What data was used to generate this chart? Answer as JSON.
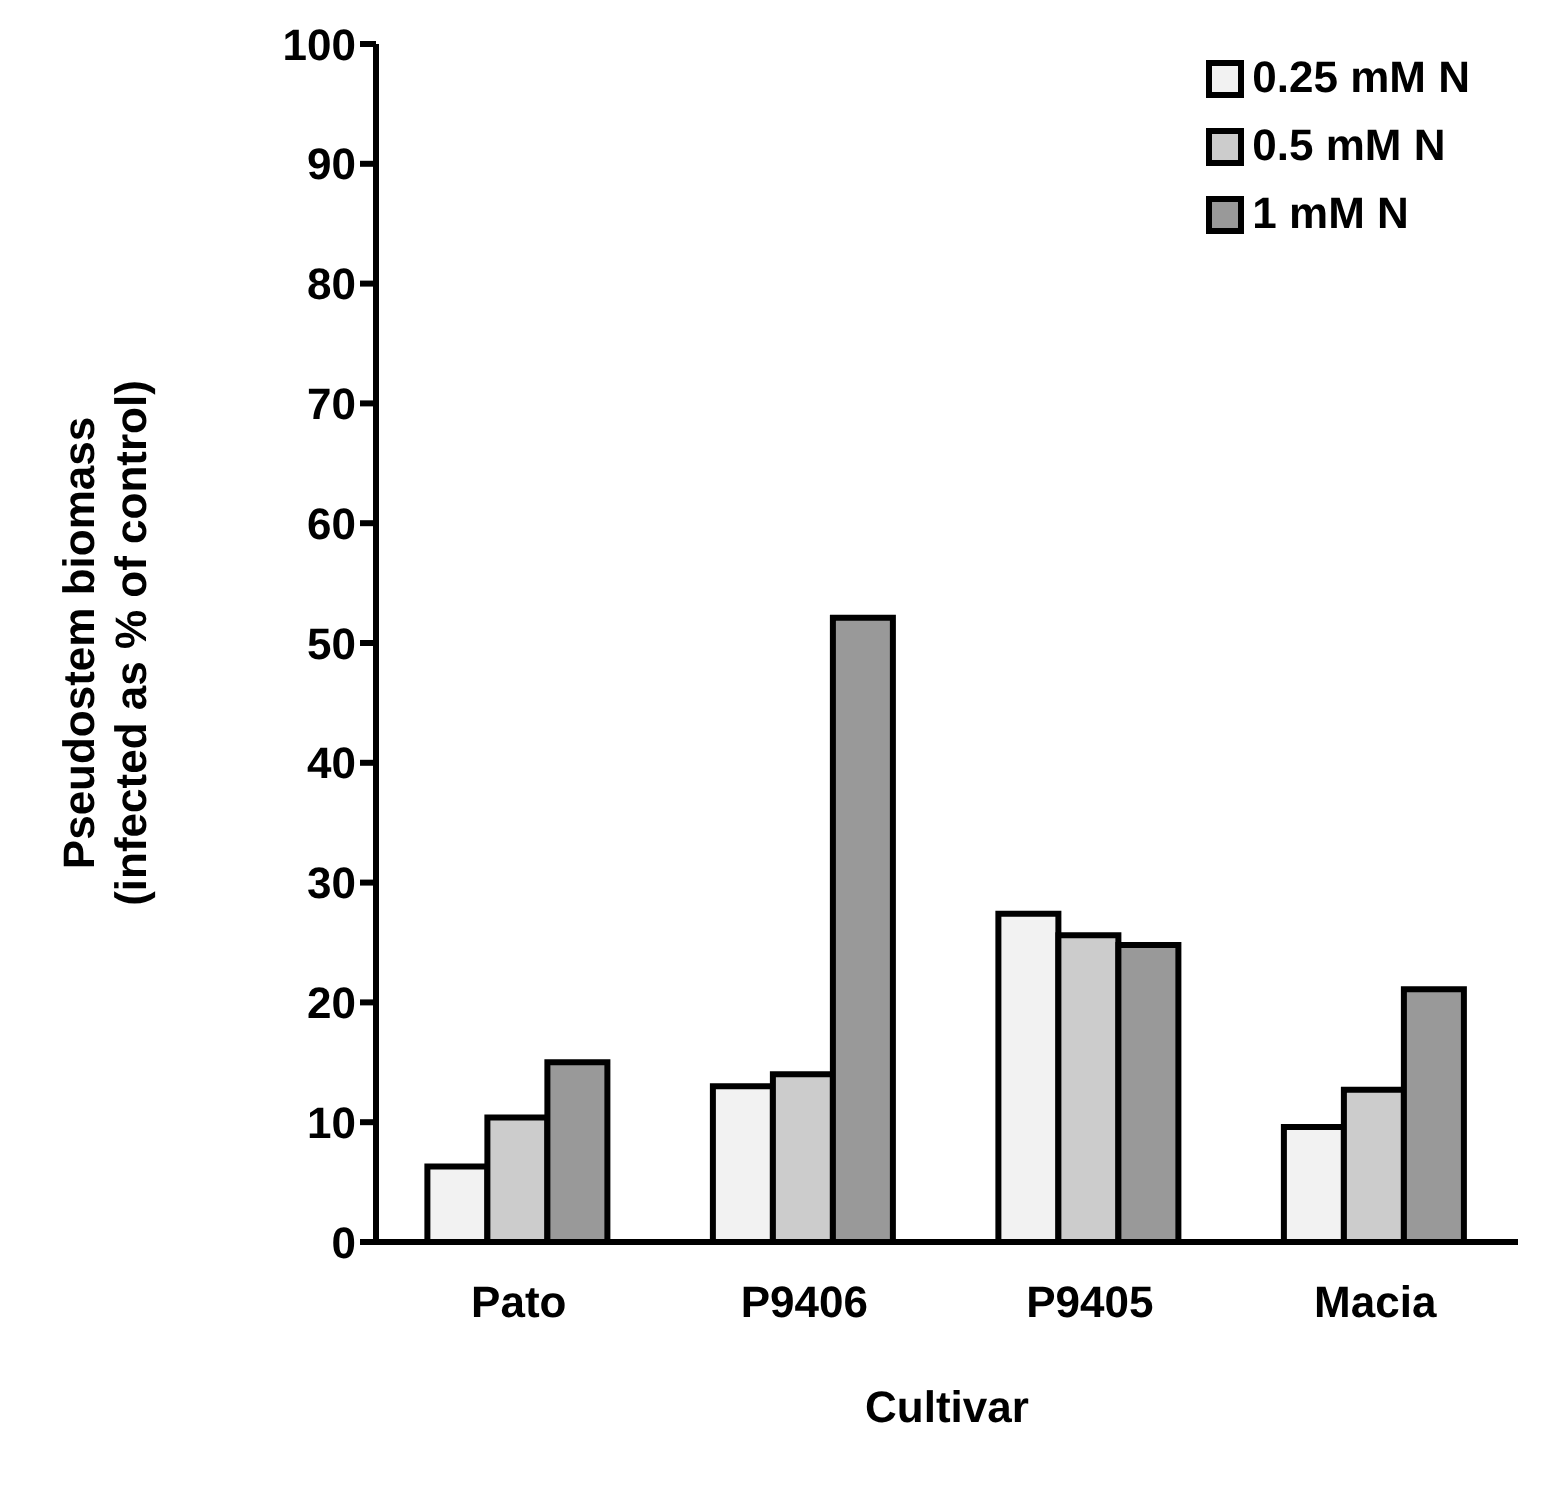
{
  "chart_data": {
    "type": "bar",
    "xlabel": "Cultivar",
    "ylabel": "Pseudostem biomass\n(infected as % of control)",
    "categories": [
      "Pato",
      "P9406",
      "P9405",
      "Macia"
    ],
    "series": [
      {
        "name": "0.25 mM N",
        "color": "#f2f2f2",
        "values": [
          6.3,
          13,
          27.4,
          9.6
        ]
      },
      {
        "name": "0.5 mM N",
        "color": "#cccccc",
        "values": [
          10.4,
          14,
          25.6,
          12.7
        ]
      },
      {
        "name": "1 mM N",
        "color": "#999999",
        "values": [
          15,
          52.1,
          24.8,
          21.1
        ]
      }
    ],
    "ylim": [
      0,
      100
    ],
    "yticks": [
      0,
      10,
      20,
      30,
      40,
      50,
      60,
      70,
      80,
      90,
      100
    ],
    "grid": false,
    "legend": "top right"
  }
}
